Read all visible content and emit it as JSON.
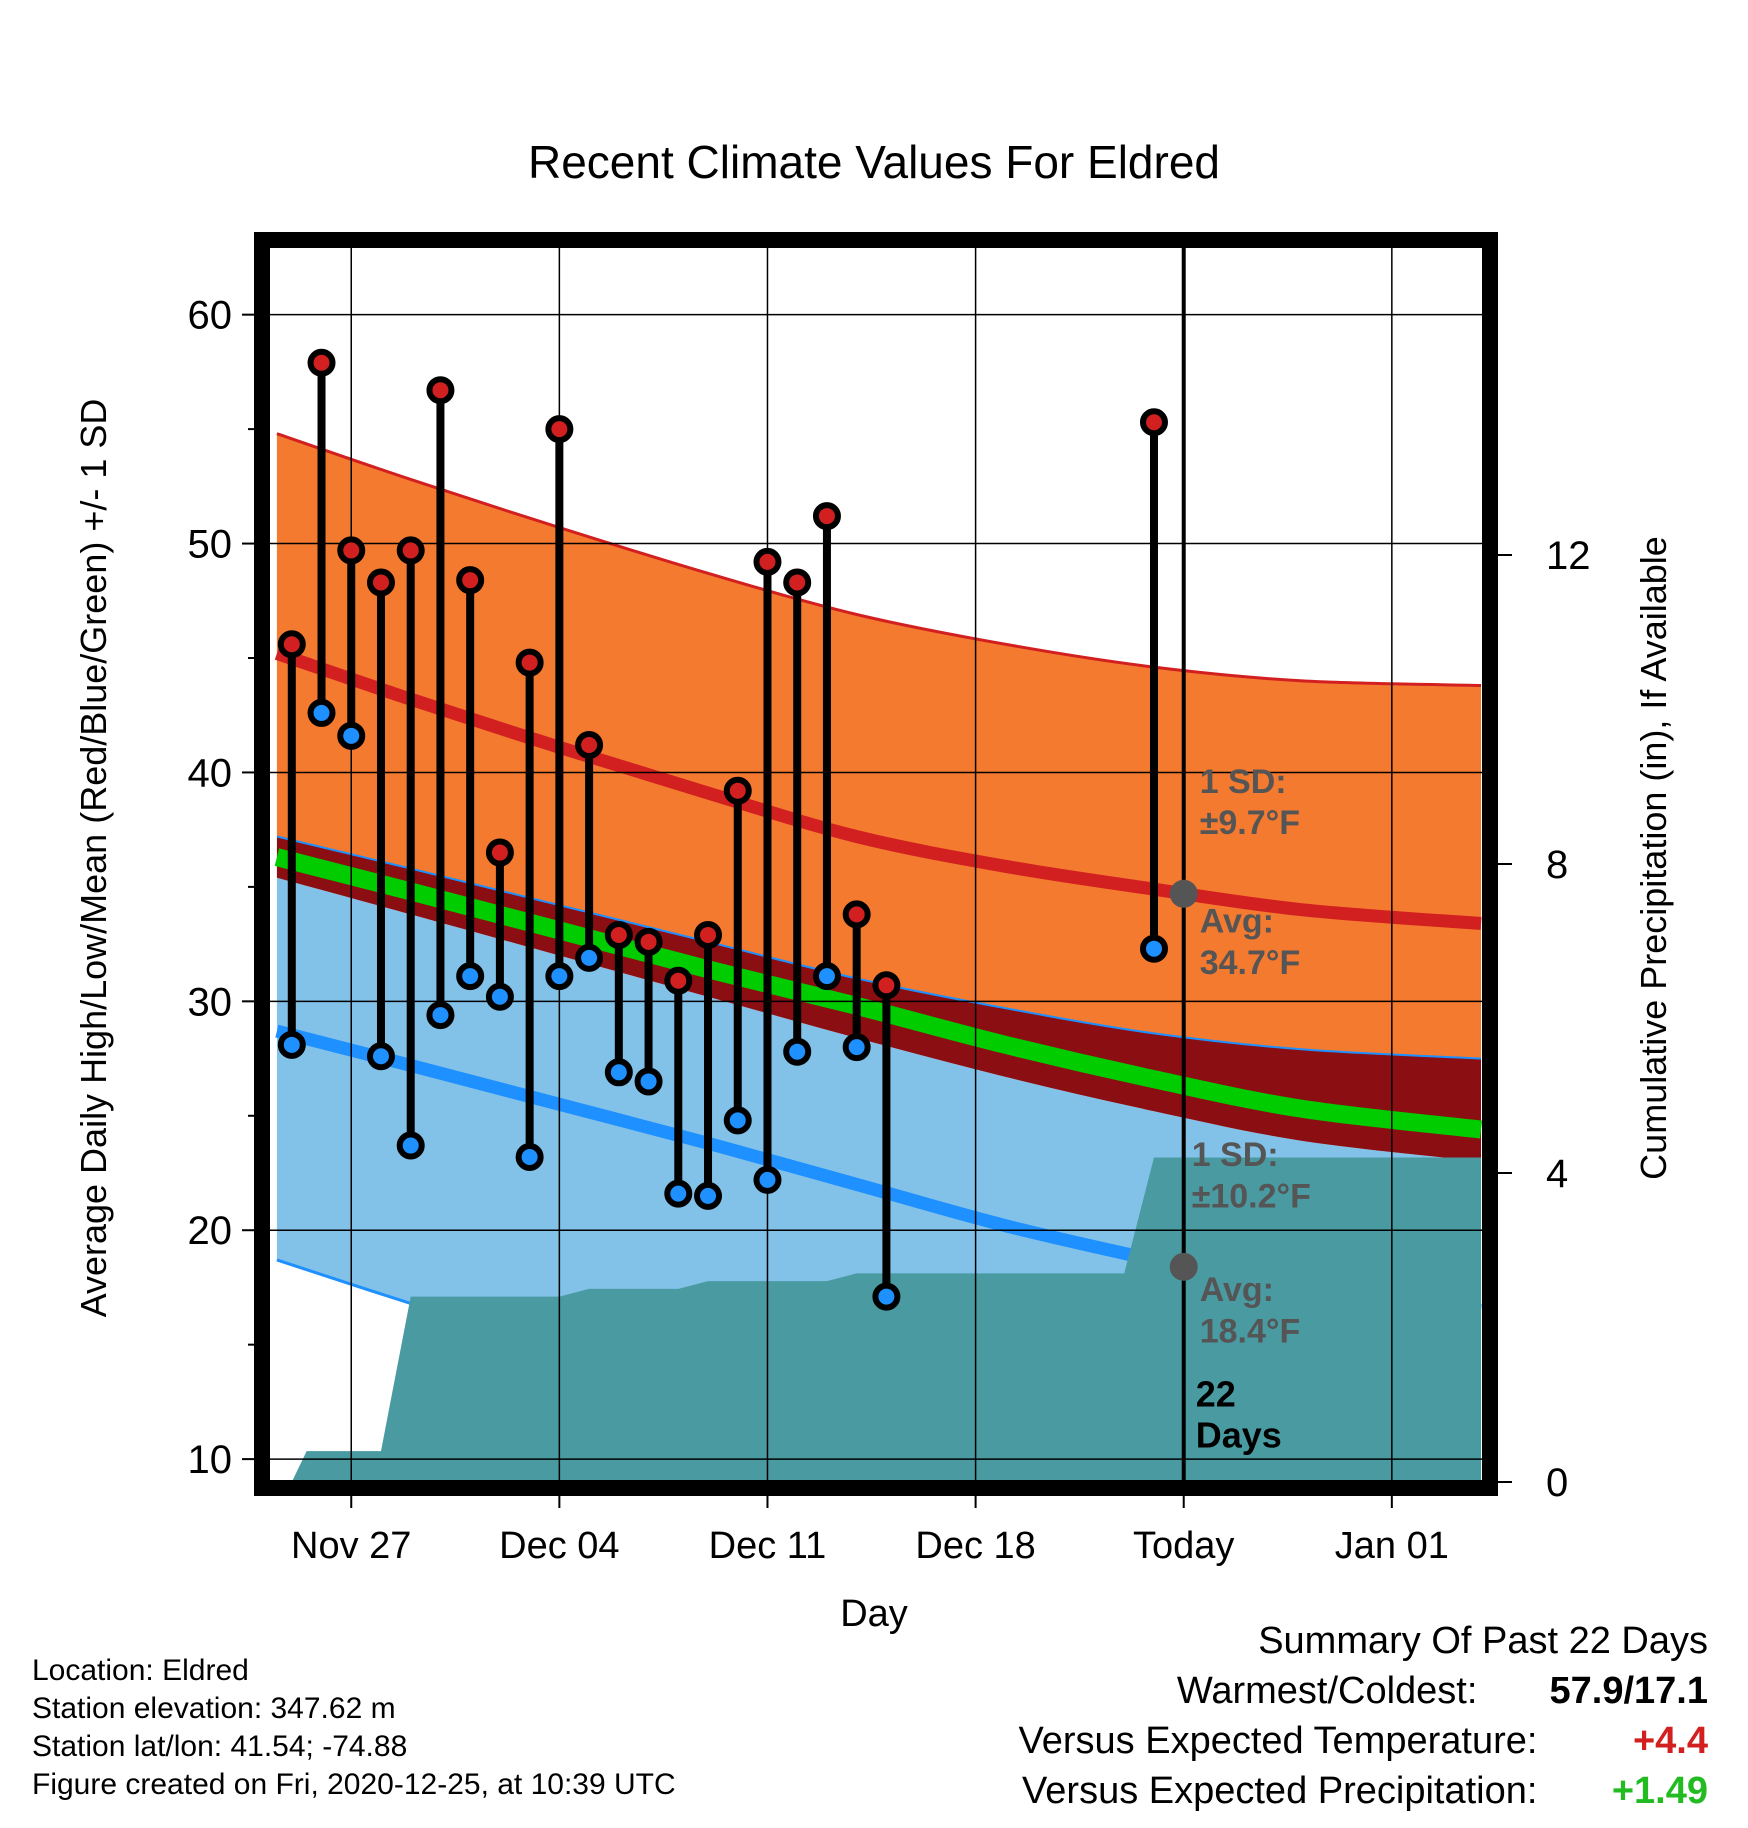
{
  "chart_data": {
    "type": "line",
    "title": "Recent Climate Values For Eldred",
    "xlabel": "Day",
    "ylabel": "Average Daily High/Low/Mean (Red/Blue/Green) +/- 1 SD",
    "y2label": "Cumulative Precipitation (in), If Available",
    "ylim": [
      9,
      63
    ],
    "y2lim": [
      0,
      16
    ],
    "yticks": [
      10,
      20,
      30,
      40,
      50,
      60
    ],
    "y2ticks": [
      0,
      4,
      8,
      12
    ],
    "xticks": [
      {
        "day": 3,
        "label": "Nov 27"
      },
      {
        "day": 10,
        "label": "Dec 04"
      },
      {
        "day": 17,
        "label": "Dec 11"
      },
      {
        "day": 24,
        "label": "Dec 18"
      },
      {
        "day": 31,
        "label": "Today"
      },
      {
        "day": 38,
        "label": "Jan 01"
      }
    ],
    "xlim": [
      0.2,
      41.1
    ],
    "today_day": 31,
    "days": [
      1,
      2,
      3,
      4,
      5,
      6,
      7,
      8,
      9,
      10,
      11,
      12,
      13,
      14,
      15,
      16,
      17,
      18,
      19,
      20,
      21,
      22,
      23,
      24,
      25,
      26,
      27,
      28,
      29,
      30,
      31,
      32,
      33,
      34,
      35,
      36,
      37,
      38,
      39,
      40
    ],
    "series": [
      {
        "name": "Daily High",
        "x": [
          1,
          2,
          3,
          4,
          5,
          6,
          7,
          8,
          9,
          10,
          11,
          12,
          13,
          14,
          15,
          16,
          17,
          18,
          19,
          20,
          21,
          30
        ],
        "values": [
          45.6,
          57.9,
          49.7,
          48.3,
          49.7,
          56.7,
          48.4,
          36.5,
          44.8,
          55.0,
          41.2,
          32.9,
          32.6,
          30.9,
          32.9,
          39.2,
          49.2,
          48.3,
          51.2,
          33.8,
          30.7,
          55.3
        ]
      },
      {
        "name": "Daily Low",
        "x": [
          1,
          2,
          3,
          4,
          5,
          6,
          7,
          8,
          9,
          10,
          11,
          12,
          13,
          14,
          15,
          16,
          17,
          18,
          19,
          20,
          21,
          30
        ],
        "values": [
          28.1,
          42.6,
          41.6,
          27.6,
          23.7,
          29.4,
          31.1,
          30.2,
          23.2,
          31.1,
          31.9,
          26.9,
          26.5,
          21.6,
          21.5,
          24.8,
          22.2,
          27.8,
          31.1,
          28.0,
          17.1,
          32.3
        ]
      }
    ],
    "climatology": {
      "x": [
        0.5,
        5,
        10,
        15,
        20,
        25,
        30,
        35,
        41
      ],
      "high_plus_sd": [
        54.8,
        52.8,
        50.7,
        48.7,
        46.9,
        45.6,
        44.6,
        44.0,
        43.8
      ],
      "high_avg": [
        45.2,
        43.2,
        41.1,
        39.1,
        37.2,
        35.9,
        34.9,
        34.0,
        33.4
      ],
      "high_minus_sd": [
        37.2,
        35.8,
        34.2,
        32.6,
        31.0,
        29.7,
        28.6,
        27.9,
        27.5
      ],
      "mean_avg": [
        36.3,
        34.8,
        33.1,
        31.4,
        29.8,
        28.1,
        26.6,
        25.3,
        24.4
      ],
      "low_plus_sd": [
        35.4,
        33.8,
        32.0,
        30.2,
        28.4,
        26.7,
        25.2,
        23.9,
        23.0
      ],
      "low_avg": [
        28.7,
        27.2,
        25.5,
        23.8,
        22.0,
        20.2,
        18.7,
        17.3,
        16.5
      ],
      "low_minus_sd": [
        18.7,
        16.8,
        14.8,
        12.8,
        10.8,
        9.0,
        9.0,
        9.0,
        9.0
      ]
    },
    "precipitation": {
      "x": [
        0.5,
        1,
        1.5,
        2,
        4,
        5,
        6,
        10,
        11,
        14,
        15,
        19,
        20,
        29,
        30,
        41
      ],
      "values": [
        0,
        0,
        0.4,
        0.4,
        0.4,
        2.4,
        2.4,
        2.4,
        2.5,
        2.5,
        2.6,
        2.6,
        2.7,
        2.7,
        4.2,
        4.2
      ]
    },
    "annotations": {
      "high_sd_label": "1 SD:",
      "high_sd_value": "±9.7°F",
      "high_avg_label": "Avg:",
      "high_avg_value": "34.7°F",
      "low_sd_label": "1 SD:",
      "low_sd_value": "±10.2°F",
      "low_avg_label": "Avg:",
      "low_avg_value": "18.4°F",
      "days_number": "22",
      "days_word": "Days"
    },
    "today_marks": {
      "high_avg": 34.7,
      "low_avg": 18.4
    },
    "colors": {
      "high_band": "#f47a30",
      "high_line": "#d22020",
      "mean_line": "#00cc00",
      "mean_band": "#8b0e12",
      "low_band": "#82c1e8",
      "low_line": "#1e90ff",
      "precip": "#4a9aa2",
      "high_dot": "#d22020",
      "low_dot": "#1e90ff",
      "annotation": "#555555"
    },
    "grid": true
  },
  "info": {
    "location": "Location: Eldred",
    "elevation": "Station elevation: 347.62 m",
    "latlon": "Station lat/lon: 41.54; -74.88",
    "created": "Figure created on Fri, 2020-12-25, at 10:39 UTC"
  },
  "summary": {
    "title": "Summary Of Past 22 Days",
    "warmest_label": "Warmest/Coldest:",
    "warmest_value": "57.9/17.1",
    "temp_label": "Versus Expected Temperature:",
    "temp_value": "+4.4",
    "temp_color": "#d22020",
    "precip_label": "Versus Expected Precipitation:",
    "precip_value": "+1.49",
    "precip_color": "#22bb22"
  }
}
